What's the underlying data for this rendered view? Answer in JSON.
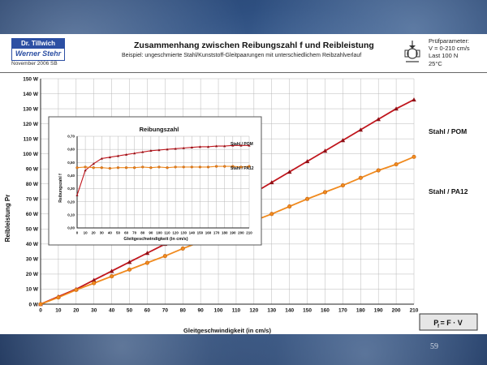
{
  "header": {
    "logo_line1": "Dr. Tillwich GmbH",
    "logo_line2": "Werner Stehr",
    "logo_date": "November 2006 SB",
    "title": "Zusammenhang zwischen Reibungszahl f und Reibleistung",
    "subtitle": "Beispiel: ungeschmierte Stahl/Kunststoff-Gleitpaarungen mit unterschiedlichem Reibzahlverlauf",
    "params": [
      "Prüfparameter:",
      "V = 0-210 cm/s",
      "Last 100 N",
      "25°C"
    ]
  },
  "page_number": "59",
  "colors": {
    "pom": "#c0151c",
    "pa12": "#f08a1e",
    "pom_marker": "#8e1016",
    "pa12_marker": "#c06010"
  },
  "chart_data": [
    {
      "type": "line",
      "xlabel": "Gleitgeschwindigkeit (in cm/s)",
      "ylabel": "Reibleistung Pr",
      "x": [
        0,
        10,
        20,
        30,
        40,
        50,
        60,
        70,
        80,
        90,
        100,
        110,
        120,
        130,
        140,
        150,
        160,
        170,
        180,
        190,
        200,
        210
      ],
      "x_ticks": [
        "0",
        "10",
        "20",
        "30",
        "40",
        "50",
        "60",
        "70",
        "80",
        "90",
        "100",
        "110",
        "120",
        "130",
        "140",
        "150",
        "160",
        "170",
        "180",
        "190",
        "200",
        "210"
      ],
      "ylim": [
        0,
        150
      ],
      "y_ticks": [
        "0 W",
        "10 W",
        "20 W",
        "30 W",
        "40 W",
        "50 W",
        "60 W",
        "70 W",
        "80 W",
        "90 W",
        "100 W",
        "110 W",
        "120 W",
        "130 W",
        "140 W",
        "150 W"
      ],
      "grid": true,
      "series": [
        {
          "name": "Stahl / POM",
          "values": [
            0,
            5,
            10,
            16,
            22,
            28,
            34,
            40,
            47,
            54,
            61,
            67,
            74,
            81,
            88,
            95,
            102,
            109,
            116,
            123,
            130,
            136
          ]
        },
        {
          "name": "Stahl / PA12",
          "values": [
            0,
            4.5,
            9.5,
            14,
            18.5,
            23,
            27.5,
            32,
            37,
            41.5,
            46,
            51,
            55.5,
            60,
            65,
            70,
            74.5,
            79,
            84,
            89,
            93,
            98
          ]
        }
      ],
      "formula_label": "P = F · V",
      "formula_sub": "f"
    },
    {
      "type": "line",
      "title": "Reibungszahl",
      "xlabel": "Gleitgeschwindigkeit (in cm/s)",
      "ylabel": "Reibungszahl f",
      "x": [
        0,
        10,
        20,
        30,
        40,
        50,
        60,
        70,
        80,
        90,
        100,
        110,
        120,
        130,
        140,
        150,
        160,
        170,
        180,
        190,
        200,
        210
      ],
      "x_ticks": [
        "0",
        "10",
        "20",
        "30",
        "40",
        "50",
        "60",
        "70",
        "80",
        "90",
        "100",
        "110",
        "120",
        "130",
        "140",
        "150",
        "160",
        "170",
        "180",
        "190",
        "200",
        "210"
      ],
      "ylim": [
        0,
        0.7
      ],
      "y_ticks": [
        "0,00",
        "0,10",
        "0,20",
        "0,30",
        "0,40",
        "0,50",
        "0,60",
        "0,70"
      ],
      "grid": true,
      "series": [
        {
          "name": "Stahl / POM",
          "values": [
            0.25,
            0.44,
            0.49,
            0.53,
            0.54,
            0.55,
            0.56,
            0.57,
            0.58,
            0.59,
            0.595,
            0.6,
            0.605,
            0.61,
            0.615,
            0.62,
            0.62,
            0.625,
            0.625,
            0.63,
            0.63,
            0.63
          ]
        },
        {
          "name": "Stahl / PA12",
          "values": [
            0.46,
            0.465,
            0.46,
            0.46,
            0.455,
            0.46,
            0.46,
            0.46,
            0.465,
            0.46,
            0.465,
            0.46,
            0.465,
            0.465,
            0.465,
            0.465,
            0.465,
            0.47,
            0.47,
            0.47,
            0.465,
            0.47
          ]
        }
      ]
    }
  ]
}
